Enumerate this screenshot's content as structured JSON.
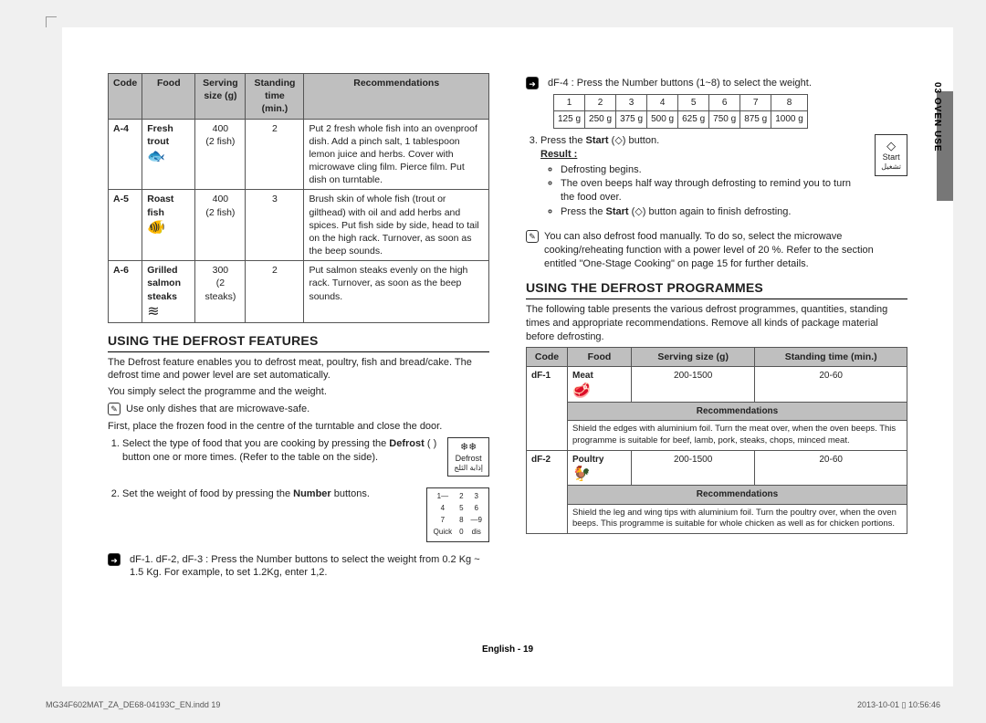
{
  "top_table": {
    "headers": [
      "Code",
      "Food",
      "Serving size (g)",
      "Standing time (min.)",
      "Recommendations"
    ],
    "rows": [
      {
        "code": "A-4",
        "food": "Fresh trout",
        "icon": "🐟",
        "serving": "400\n(2 fish)",
        "time": "2",
        "rec": "Put 2 fresh whole fish into an ovenproof dish. Add a pinch salt, 1 tablespoon lemon juice and herbs. Cover with microwave cling film. Pierce film. Put dish on turntable."
      },
      {
        "code": "A-5",
        "food": "Roast fish",
        "icon": "🐠",
        "serving": "400\n(2 fish)",
        "time": "3",
        "rec": "Brush skin of whole fish (trout or gilthead) with oil and add herbs and spices. Put fish side by side, head to tail on the high rack. Turnover, as soon as the beep sounds."
      },
      {
        "code": "A-6",
        "food": "Grilled salmon steaks",
        "icon": "≋",
        "serving": "300\n(2 steaks)",
        "time": "2",
        "rec": "Put salmon steaks evenly on the high rack. Turnover, as soon as the beep sounds."
      }
    ]
  },
  "h_defrost_features": "USING THE DEFROST FEATURES",
  "defrost_intro_1": "The Defrost feature enables you to defrost meat, poultry, fish and bread/cake. The defrost time and power level are set automatically.",
  "defrost_intro_2": "You simply select the programme and the weight.",
  "note_dishes": "Use only dishes that are microwave-safe.",
  "defrost_intro_3": "First, place the frozen food in the centre of the turntable and close the door.",
  "step1_a": "Select the type of food that you are cooking by pressing the ",
  "step1_bold": "Defrost",
  "step1_b": " ( ) button one or more times. (Refer to the table on the side).",
  "defrost_badge_top": "❄❄",
  "defrost_badge_mid": "Defrost",
  "defrost_badge_ar": "إذابة الثلج",
  "step2_a": "Set the weight of food by pressing the ",
  "step2_bold": "Number",
  "step2_b": " buttons.",
  "keypad": [
    [
      "1—",
      "2",
      "3"
    ],
    [
      "4",
      "5",
      "6"
    ],
    [
      "7",
      "8",
      "—9"
    ],
    [
      "Quick",
      "0",
      "dis"
    ]
  ],
  "df_note_1": "dF-1. dF-2, dF-3 : Press the Number buttons to select the weight from 0.2 Kg ~ 1.5 Kg. For example, to set 1.2Kg, enter 1,2.",
  "df_note_2": "dF-4 : Press the Number buttons (1~8) to select the weight.",
  "weight_table": {
    "h": [
      "1",
      "2",
      "3",
      "4",
      "5",
      "6",
      "7",
      "8"
    ],
    "v": [
      "125 g",
      "250 g",
      "375 g",
      "500 g",
      "625 g",
      "750 g",
      "875 g",
      "1000 g"
    ]
  },
  "step3_a": "Press the ",
  "step3_bold": "Start",
  "step3_b": " (◇) button.",
  "start_badge_top": "◇",
  "start_badge_mid": "Start",
  "start_badge_ar": "تشغيل",
  "result_label": "Result :",
  "result_items": [
    "Defrosting begins.",
    "The oven beeps half way through defrosting to remind you to turn the food over.",
    "Press the Start (◇) button again to finish defrosting."
  ],
  "note_manual": "You can also defrost food manually. To do so, select the microwave cooking/reheating function with a power level of 20 %. Refer to the section entitled \"One-Stage Cooking\" on page 15 for further details.",
  "h_defrost_prog": "USING THE DEFROST PROGRAMMES",
  "prog_intro": "The following table presents the various defrost programmes, quantities, standing times and appropriate recommendations. Remove all kinds of package material before defrosting.",
  "prog_headers": [
    "Code",
    "Food",
    "Serving size (g)",
    "Standing time (min.)"
  ],
  "prog": [
    {
      "code": "dF-1",
      "food": "Meat",
      "icon": "🥩",
      "serving": "200-1500",
      "time": "20-60",
      "rec_label": "Recommendations",
      "rec": "Shield the edges with aluminium foil. Turn the meat over, when the oven beeps. This programme is suitable for beef, lamb, pork, steaks, chops, minced meat."
    },
    {
      "code": "dF-2",
      "food": "Poultry",
      "icon": "🐓",
      "serving": "200-1500",
      "time": "20-60",
      "rec_label": "Recommendations",
      "rec": "Shield the leg and wing tips with aluminium foil. Turn the poultry over, when the oven beeps. This programme is suitable for whole chicken as well as for chicken portions."
    }
  ],
  "side_label": "03 OVEN USE",
  "page_en": "English - 19",
  "footer_left": "MG34F602MAT_ZA_DE68-04193C_EN.indd   19",
  "footer_right": "2013-10-01   ▯ 10:56:46"
}
